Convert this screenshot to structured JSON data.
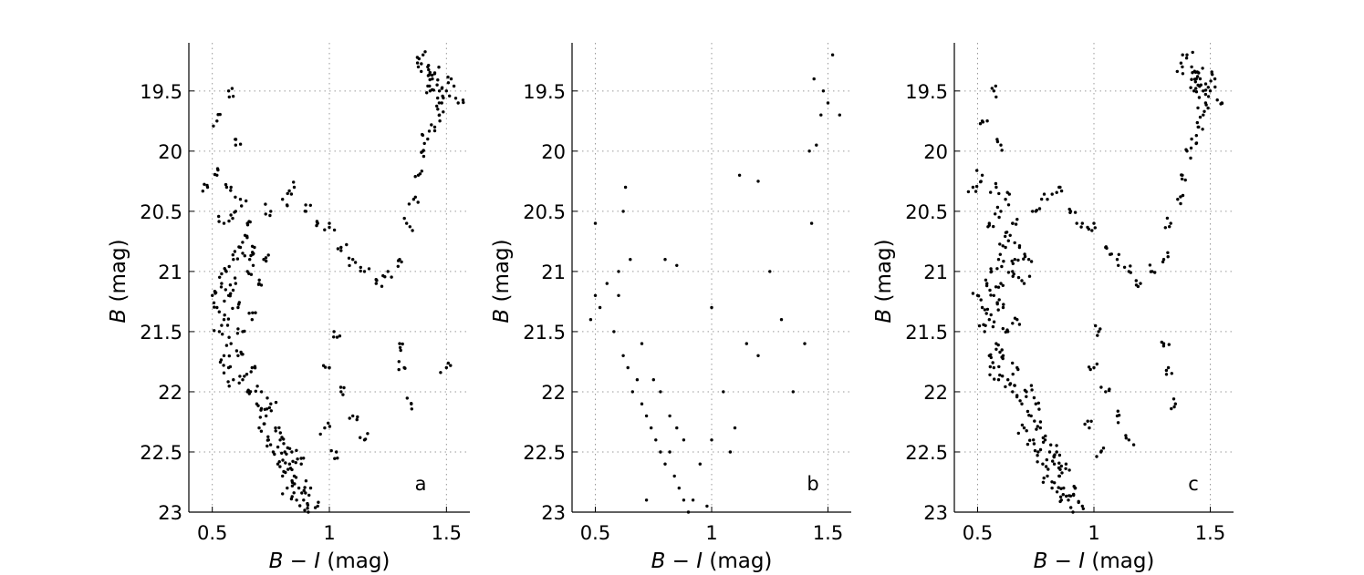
{
  "figure": {
    "xlabel_var": "B − I",
    "xlabel_unit": " (mag)",
    "ylabel_var": "B",
    "ylabel_unit": " (mag)"
  },
  "chart_data": [
    {
      "type": "scatter",
      "panel_label": "a",
      "xlabel": "B − I (mag)",
      "ylabel": "B (mag)",
      "xlim": [
        0.4,
        1.6
      ],
      "ylim": [
        23,
        19.1
      ],
      "y_inverted": true,
      "xticks": [
        "0.5",
        "1",
        "1.5"
      ],
      "yticks": [
        "19.5",
        "20",
        "20.5",
        "21",
        "21.5",
        "22",
        "22.5",
        "23"
      ],
      "grid": true,
      "series": [
        {
          "name": "",
          "color": "#000000",
          "points": [
            [
              0.5,
              21.2
            ],
            [
              0.52,
              21.3
            ],
            [
              0.53,
              21.5
            ],
            [
              0.54,
              21.1
            ],
            [
              0.55,
              21.4
            ],
            [
              0.56,
              21.0
            ],
            [
              0.57,
              21.2
            ],
            [
              0.58,
              21.6
            ],
            [
              0.59,
              20.9
            ],
            [
              0.6,
              21.1
            ],
            [
              0.61,
              21.3
            ],
            [
              0.62,
              20.8
            ],
            [
              0.63,
              21.5
            ],
            [
              0.64,
              20.7
            ],
            [
              0.65,
              21.0
            ],
            [
              0.66,
              20.9
            ],
            [
              0.67,
              21.4
            ],
            [
              0.68,
              20.8
            ],
            [
              0.7,
              21.1
            ],
            [
              0.72,
              20.9
            ],
            [
              0.55,
              21.7
            ],
            [
              0.57,
              21.8
            ],
            [
              0.59,
              21.9
            ],
            [
              0.61,
              21.7
            ],
            [
              0.63,
              21.9
            ],
            [
              0.65,
              22.0
            ],
            [
              0.67,
              21.8
            ],
            [
              0.69,
              22.1
            ],
            [
              0.71,
              22.0
            ],
            [
              0.73,
              22.2
            ],
            [
              0.75,
              22.1
            ],
            [
              0.77,
              22.3
            ],
            [
              0.79,
              22.4
            ],
            [
              0.81,
              22.5
            ],
            [
              0.83,
              22.6
            ],
            [
              0.85,
              22.7
            ],
            [
              0.87,
              22.8
            ],
            [
              0.89,
              22.9
            ],
            [
              0.91,
              23.0
            ],
            [
              0.86,
              22.9
            ],
            [
              0.82,
              22.8
            ],
            [
              0.78,
              22.6
            ],
            [
              0.74,
              22.4
            ],
            [
              0.7,
              22.3
            ],
            [
              0.76,
              22.5
            ],
            [
              0.8,
              22.7
            ],
            [
              0.84,
              22.5
            ],
            [
              0.88,
              22.6
            ],
            [
              0.92,
              22.8
            ],
            [
              0.95,
              22.95
            ],
            [
              0.6,
              20.5
            ],
            [
              0.62,
              20.4
            ],
            [
              0.58,
              20.3
            ],
            [
              0.65,
              20.6
            ],
            [
              0.55,
              20.6
            ],
            [
              0.52,
              20.2
            ],
            [
              0.48,
              20.3
            ],
            [
              0.75,
              20.5
            ],
            [
              0.8,
              20.4
            ],
            [
              0.85,
              20.3
            ],
            [
              0.9,
              20.5
            ],
            [
              0.95,
              20.6
            ],
            [
              1.0,
              20.6
            ],
            [
              1.05,
              20.8
            ],
            [
              1.1,
              20.9
            ],
            [
              1.15,
              21.0
            ],
            [
              1.2,
              21.1
            ],
            [
              1.25,
              21.0
            ],
            [
              1.3,
              20.9
            ],
            [
              1.33,
              20.6
            ],
            [
              1.36,
              20.4
            ],
            [
              1.38,
              20.2
            ],
            [
              1.4,
              20.0
            ],
            [
              1.42,
              19.9
            ],
            [
              1.45,
              19.8
            ],
            [
              1.47,
              19.7
            ],
            [
              1.48,
              19.6
            ],
            [
              1.43,
              19.5
            ],
            [
              1.44,
              19.4
            ],
            [
              1.45,
              19.35
            ],
            [
              1.46,
              19.45
            ],
            [
              1.42,
              19.3
            ],
            [
              1.47,
              19.5
            ],
            [
              1.5,
              19.5
            ],
            [
              1.52,
              19.4
            ],
            [
              1.4,
              19.2
            ],
            [
              1.38,
              19.3
            ],
            [
              1.55,
              19.6
            ],
            [
              0.57,
              19.5
            ],
            [
              0.52,
              19.75
            ],
            [
              0.6,
              19.95
            ],
            [
              1.02,
              21.5
            ],
            [
              1.0,
              21.8
            ],
            [
              1.05,
              22.0
            ],
            [
              1.1,
              22.2
            ],
            [
              1.15,
              22.4
            ],
            [
              0.98,
              22.3
            ],
            [
              1.03,
              22.5
            ],
            [
              1.3,
              21.6
            ],
            [
              1.32,
              21.8
            ],
            [
              1.35,
              22.1
            ],
            [
              1.5,
              21.8
            ]
          ]
        }
      ]
    },
    {
      "type": "scatter",
      "panel_label": "b",
      "xlabel": "B − I (mag)",
      "ylabel": "B (mag)",
      "xlim": [
        0.4,
        1.6
      ],
      "ylim": [
        23,
        19.1
      ],
      "y_inverted": true,
      "xticks": [
        "0.5",
        "1",
        "1.5"
      ],
      "yticks": [
        "19.5",
        "20",
        "20.5",
        "21",
        "21.5",
        "22",
        "22.5",
        "23"
      ],
      "grid": true,
      "series": [
        {
          "name": "",
          "color": "#000000",
          "points": [
            [
              0.48,
              21.4
            ],
            [
              0.5,
              21.2
            ],
            [
              0.52,
              21.3
            ],
            [
              0.55,
              21.1
            ],
            [
              0.58,
              21.5
            ],
            [
              0.6,
              21.2
            ],
            [
              0.62,
              21.7
            ],
            [
              0.64,
              21.8
            ],
            [
              0.66,
              22.0
            ],
            [
              0.68,
              21.9
            ],
            [
              0.7,
              22.1
            ],
            [
              0.72,
              22.2
            ],
            [
              0.74,
              22.3
            ],
            [
              0.76,
              22.4
            ],
            [
              0.78,
              22.5
            ],
            [
              0.8,
              22.6
            ],
            [
              0.82,
              22.5
            ],
            [
              0.84,
              22.7
            ],
            [
              0.86,
              22.8
            ],
            [
              0.88,
              22.9
            ],
            [
              0.9,
              23.0
            ],
            [
              0.92,
              22.9
            ],
            [
              0.7,
              21.6
            ],
            [
              0.75,
              21.9
            ],
            [
              0.78,
              22.0
            ],
            [
              0.82,
              22.2
            ],
            [
              0.85,
              22.3
            ],
            [
              0.88,
              22.4
            ],
            [
              0.6,
              21.0
            ],
            [
              0.65,
              20.9
            ],
            [
              0.62,
              20.5
            ],
            [
              0.63,
              20.3
            ],
            [
              0.5,
              20.6
            ],
            [
              0.8,
              20.9
            ],
            [
              0.85,
              20.95
            ],
            [
              1.0,
              21.3
            ],
            [
              1.05,
              22.0
            ],
            [
              1.1,
              22.3
            ],
            [
              1.15,
              21.6
            ],
            [
              1.2,
              21.7
            ],
            [
              1.25,
              21.0
            ],
            [
              1.3,
              21.4
            ],
            [
              1.35,
              22.0
            ],
            [
              1.4,
              21.6
            ],
            [
              1.42,
              20.0
            ],
            [
              1.45,
              19.95
            ],
            [
              1.43,
              20.6
            ],
            [
              1.47,
              19.7
            ],
            [
              1.48,
              19.5
            ],
            [
              1.5,
              19.6
            ],
            [
              1.52,
              19.2
            ],
            [
              1.44,
              19.4
            ],
            [
              1.55,
              19.7
            ],
            [
              1.12,
              20.2
            ],
            [
              1.2,
              20.25
            ],
            [
              0.95,
              22.6
            ],
            [
              1.0,
              22.4
            ],
            [
              1.08,
              22.5
            ],
            [
              0.72,
              22.9
            ],
            [
              0.98,
              22.95
            ]
          ]
        }
      ]
    },
    {
      "type": "scatter",
      "panel_label": "c",
      "xlabel": "B − I (mag)",
      "ylabel": "B (mag)",
      "xlim": [
        0.4,
        1.6
      ],
      "ylim": [
        23,
        19.1
      ],
      "y_inverted": true,
      "xticks": [
        "0.5",
        "1",
        "1.5"
      ],
      "yticks": [
        "19.5",
        "20",
        "20.5",
        "21",
        "21.5",
        "22",
        "22.5",
        "23"
      ],
      "grid": true,
      "series": [
        {
          "name": "",
          "color": "#000000",
          "points": [
            [
              0.5,
              21.2
            ],
            [
              0.52,
              21.3
            ],
            [
              0.53,
              21.5
            ],
            [
              0.54,
              21.1
            ],
            [
              0.55,
              21.4
            ],
            [
              0.56,
              21.0
            ],
            [
              0.57,
              21.2
            ],
            [
              0.58,
              21.6
            ],
            [
              0.59,
              20.9
            ],
            [
              0.6,
              21.1
            ],
            [
              0.61,
              21.3
            ],
            [
              0.62,
              20.8
            ],
            [
              0.63,
              21.5
            ],
            [
              0.64,
              20.7
            ],
            [
              0.65,
              21.0
            ],
            [
              0.66,
              20.9
            ],
            [
              0.67,
              21.4
            ],
            [
              0.68,
              20.8
            ],
            [
              0.7,
              21.1
            ],
            [
              0.72,
              20.9
            ],
            [
              0.55,
              21.7
            ],
            [
              0.57,
              21.8
            ],
            [
              0.59,
              21.9
            ],
            [
              0.61,
              21.7
            ],
            [
              0.63,
              21.9
            ],
            [
              0.65,
              22.0
            ],
            [
              0.67,
              21.8
            ],
            [
              0.69,
              22.1
            ],
            [
              0.71,
              22.0
            ],
            [
              0.73,
              22.2
            ],
            [
              0.75,
              22.1
            ],
            [
              0.77,
              22.3
            ],
            [
              0.79,
              22.4
            ],
            [
              0.81,
              22.5
            ],
            [
              0.83,
              22.6
            ],
            [
              0.85,
              22.7
            ],
            [
              0.87,
              22.8
            ],
            [
              0.89,
              22.9
            ],
            [
              0.91,
              23.0
            ],
            [
              0.86,
              22.9
            ],
            [
              0.82,
              22.8
            ],
            [
              0.78,
              22.6
            ],
            [
              0.74,
              22.4
            ],
            [
              0.7,
              22.3
            ],
            [
              0.76,
              22.5
            ],
            [
              0.8,
              22.7
            ],
            [
              0.84,
              22.5
            ],
            [
              0.88,
              22.6
            ],
            [
              0.92,
              22.8
            ],
            [
              0.95,
              22.95
            ],
            [
              0.6,
              20.5
            ],
            [
              0.62,
              20.4
            ],
            [
              0.58,
              20.3
            ],
            [
              0.65,
              20.6
            ],
            [
              0.55,
              20.6
            ],
            [
              0.52,
              20.2
            ],
            [
              0.48,
              20.3
            ],
            [
              0.75,
              20.5
            ],
            [
              0.8,
              20.4
            ],
            [
              0.85,
              20.3
            ],
            [
              0.9,
              20.5
            ],
            [
              0.95,
              20.6
            ],
            [
              1.0,
              20.6
            ],
            [
              1.05,
              20.8
            ],
            [
              1.1,
              20.9
            ],
            [
              1.15,
              21.0
            ],
            [
              1.2,
              21.1
            ],
            [
              1.25,
              21.0
            ],
            [
              1.3,
              20.9
            ],
            [
              1.33,
              20.6
            ],
            [
              1.36,
              20.4
            ],
            [
              1.38,
              20.2
            ],
            [
              1.4,
              20.0
            ],
            [
              1.42,
              19.9
            ],
            [
              1.45,
              19.8
            ],
            [
              1.47,
              19.7
            ],
            [
              1.48,
              19.6
            ],
            [
              1.43,
              19.5
            ],
            [
              1.44,
              19.4
            ],
            [
              1.45,
              19.35
            ],
            [
              1.46,
              19.45
            ],
            [
              1.42,
              19.3
            ],
            [
              1.47,
              19.5
            ],
            [
              1.5,
              19.5
            ],
            [
              1.52,
              19.4
            ],
            [
              1.4,
              19.2
            ],
            [
              1.38,
              19.3
            ],
            [
              1.55,
              19.6
            ],
            [
              0.57,
              19.5
            ],
            [
              0.52,
              19.75
            ],
            [
              0.6,
              19.95
            ],
            [
              1.02,
              21.5
            ],
            [
              1.0,
              21.8
            ],
            [
              1.05,
              22.0
            ],
            [
              1.1,
              22.2
            ],
            [
              1.15,
              22.4
            ],
            [
              0.98,
              22.3
            ],
            [
              1.03,
              22.5
            ],
            [
              1.3,
              21.6
            ],
            [
              1.32,
              21.8
            ],
            [
              1.35,
              22.1
            ]
          ]
        }
      ]
    }
  ]
}
